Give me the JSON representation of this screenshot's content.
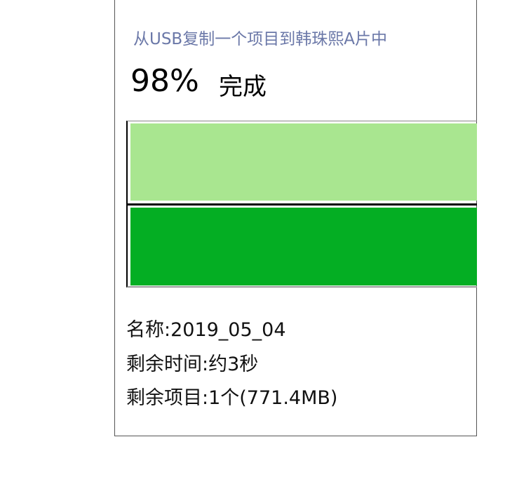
{
  "dialog": {
    "title": "从USB复制一个项目到韩珠熙A片中",
    "percent": "98%",
    "status": "完成",
    "progress_percent": 98,
    "colors": {
      "title": "#6b78a8",
      "bar_light": "#a9e690",
      "bar_dark": "#04ae23"
    },
    "info": [
      "名称:2019_05_04",
      "剩余时间:约3秒",
      "剩余项目:1个(771.4MB)"
    ]
  }
}
